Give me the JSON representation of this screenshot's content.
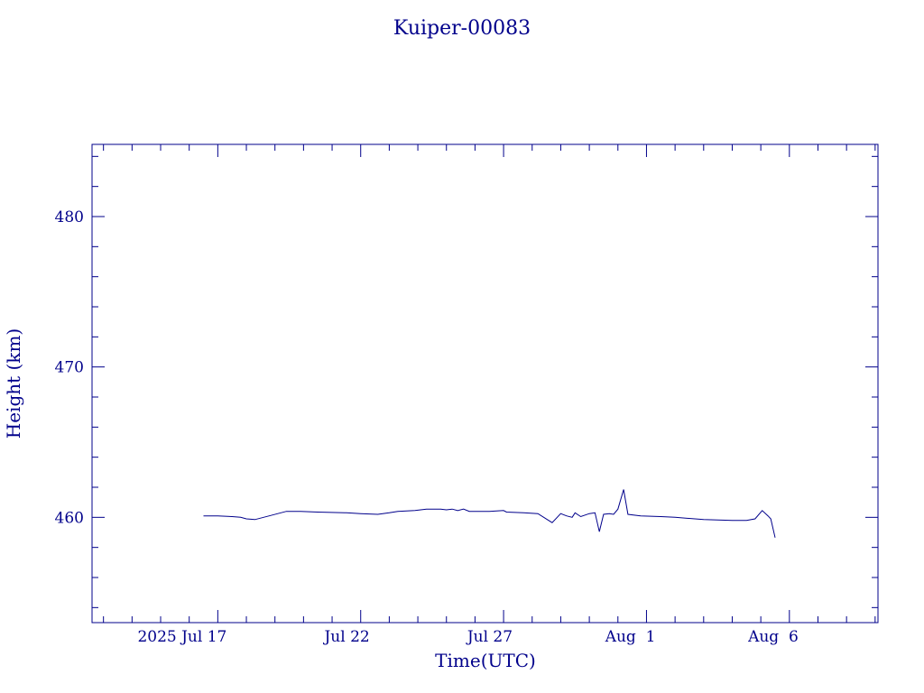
{
  "chart_data": {
    "type": "line",
    "title": "Kuiper-00083",
    "xlabel": "Time(UTC)",
    "ylabel": "Height (km)",
    "x_unit": "days (July–August 2025)",
    "xlim": [
      12.6,
      40.1
    ],
    "ylim": [
      453.0,
      484.8
    ],
    "x_ticks": [
      {
        "label": "2025 Jul 17",
        "value": 17
      },
      {
        "label": "Jul 22",
        "value": 22
      },
      {
        "label": "Jul 27",
        "value": 27
      },
      {
        "label": "Aug  1",
        "value": 32
      },
      {
        "label": "Aug  6",
        "value": 37
      }
    ],
    "y_ticks": [
      460,
      470,
      480
    ],
    "grid": false,
    "color": "#00008b",
    "series": [
      {
        "values": [
          [
            16.5,
            460.1
          ],
          [
            17.0,
            460.1
          ],
          [
            17.5,
            460.05
          ],
          [
            17.8,
            460.0
          ],
          [
            18.0,
            459.9
          ],
          [
            18.3,
            459.85
          ],
          [
            18.8,
            460.1
          ],
          [
            19.4,
            460.4
          ],
          [
            19.9,
            460.4
          ],
          [
            20.5,
            460.35
          ],
          [
            21.5,
            460.3
          ],
          [
            22.0,
            460.25
          ],
          [
            22.6,
            460.2
          ],
          [
            23.0,
            460.3
          ],
          [
            23.3,
            460.4
          ],
          [
            23.9,
            460.45
          ],
          [
            24.3,
            460.55
          ],
          [
            24.8,
            460.55
          ],
          [
            25.0,
            460.5
          ],
          [
            25.2,
            460.55
          ],
          [
            25.4,
            460.45
          ],
          [
            25.6,
            460.55
          ],
          [
            25.8,
            460.4
          ],
          [
            26.5,
            460.4
          ],
          [
            27.0,
            460.45
          ],
          [
            27.1,
            460.35
          ],
          [
            27.7,
            460.3
          ],
          [
            28.2,
            460.25
          ],
          [
            28.7,
            459.65
          ],
          [
            29.0,
            460.25
          ],
          [
            29.2,
            460.1
          ],
          [
            29.4,
            460.0
          ],
          [
            29.5,
            460.3
          ],
          [
            29.7,
            460.05
          ],
          [
            30.0,
            460.25
          ],
          [
            30.2,
            460.3
          ],
          [
            30.35,
            459.05
          ],
          [
            30.5,
            460.2
          ],
          [
            30.7,
            460.25
          ],
          [
            30.85,
            460.2
          ],
          [
            31.0,
            460.55
          ],
          [
            31.2,
            461.85
          ],
          [
            31.35,
            460.2
          ],
          [
            31.8,
            460.1
          ],
          [
            32.5,
            460.05
          ],
          [
            33.0,
            460.0
          ],
          [
            34.0,
            459.85
          ],
          [
            35.0,
            459.8
          ],
          [
            35.5,
            459.8
          ],
          [
            35.8,
            459.9
          ],
          [
            36.05,
            460.45
          ],
          [
            36.25,
            460.1
          ],
          [
            36.35,
            459.9
          ],
          [
            36.5,
            458.65
          ]
        ]
      }
    ]
  }
}
